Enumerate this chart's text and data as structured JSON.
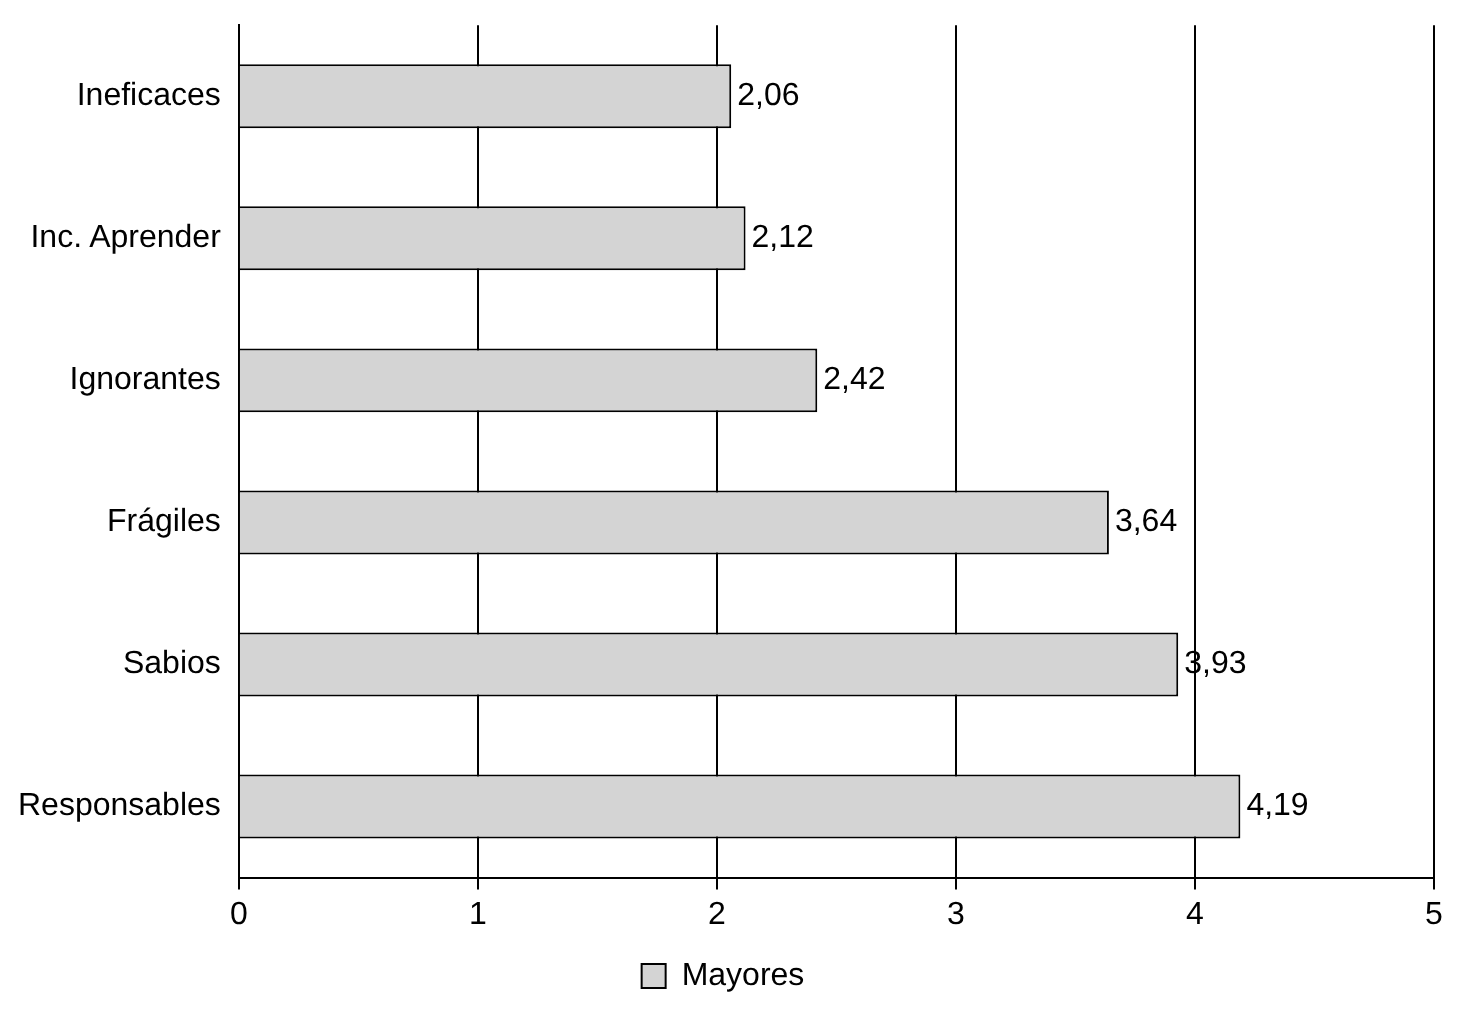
{
  "chart_data": {
    "type": "bar",
    "orientation": "horizontal",
    "categories": [
      "Ineficaces",
      "Inc. Aprender",
      "Ignorantes",
      "Frágiles",
      "Sabios",
      "Responsables"
    ],
    "series": [
      {
        "name": "Mayores",
        "color": "#d4d4d4",
        "values": [
          2.06,
          2.12,
          2.42,
          3.64,
          3.93,
          4.19
        ],
        "value_labels": [
          "2,06",
          "2,12",
          "2,42",
          "3,64",
          "3,93",
          "4,19"
        ]
      }
    ],
    "xlim": [
      0,
      5
    ],
    "xticks": [
      0,
      1,
      2,
      3,
      4,
      5
    ],
    "grid": "x",
    "legend": "bottom"
  }
}
